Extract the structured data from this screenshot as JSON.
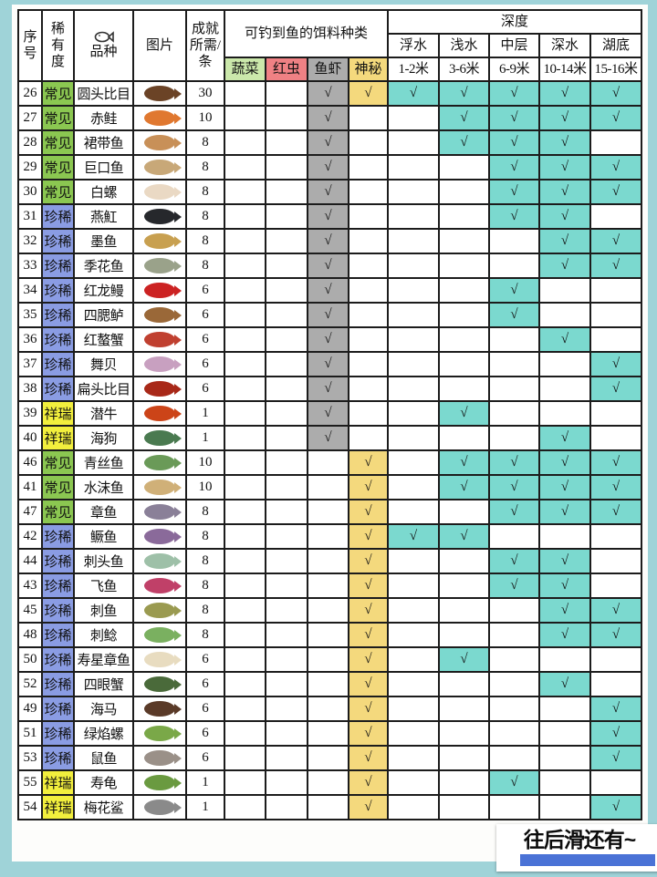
{
  "page": {
    "scroll_hint": "往后滑还有~"
  },
  "colors": {
    "background": "#9fd3d8",
    "border": "#1c1c1c",
    "depth_check_cell": "#7bd9cf",
    "scroll_bar_blue": "#4a72d6"
  },
  "rarity_colors": {
    "常见": "#8bc751",
    "珍稀": "#8a9ce3",
    "祥瑞": "#f2ef3d"
  },
  "table": {
    "check_mark": "√",
    "headers": {
      "no": "序号",
      "rarity": "稀有度",
      "species": "品种",
      "species_icon": "fish-icon",
      "image": "图片",
      "achievement": "成就所需/条",
      "bait_group": "可钓到鱼的饵料种类",
      "baits": [
        {
          "label": "蔬菜",
          "color": "#cbe8ab"
        },
        {
          "label": "红虫",
          "color": "#ef8184"
        },
        {
          "label": "鱼虾",
          "color": "#acacac"
        },
        {
          "label": "神秘",
          "color": "#f4d97d"
        }
      ],
      "depth_group": "深度",
      "depths": [
        {
          "name": "浮水",
          "range": "1-2米"
        },
        {
          "name": "浅水",
          "range": "3-6米"
        },
        {
          "name": "中层",
          "range": "6-9米"
        },
        {
          "name": "深水",
          "range": "10-14米"
        },
        {
          "name": "湖底",
          "range": "15-16米"
        }
      ]
    },
    "rows": [
      {
        "no": "26",
        "rarity": "常见",
        "name": "圆头比目",
        "count": "30",
        "baits": [
          0,
          0,
          1,
          1
        ],
        "depths": [
          1,
          1,
          1,
          1,
          1
        ],
        "img_color": "#6b4326"
      },
      {
        "no": "27",
        "rarity": "常见",
        "name": "赤鲑",
        "count": "10",
        "baits": [
          0,
          0,
          1,
          0
        ],
        "depths": [
          0,
          1,
          1,
          1,
          1
        ],
        "img_color": "#e07830"
      },
      {
        "no": "28",
        "rarity": "常见",
        "name": "裙带鱼",
        "count": "8",
        "baits": [
          0,
          0,
          1,
          0
        ],
        "depths": [
          0,
          1,
          1,
          1,
          0
        ],
        "img_color": "#c89058"
      },
      {
        "no": "29",
        "rarity": "常见",
        "name": "巨口鱼",
        "count": "8",
        "baits": [
          0,
          0,
          1,
          0
        ],
        "depths": [
          0,
          0,
          1,
          1,
          1
        ],
        "img_color": "#c8a878"
      },
      {
        "no": "30",
        "rarity": "常见",
        "name": "白螺",
        "count": "8",
        "baits": [
          0,
          0,
          1,
          0
        ],
        "depths": [
          0,
          0,
          1,
          1,
          1
        ],
        "img_color": "#ead9c4"
      },
      {
        "no": "31",
        "rarity": "珍稀",
        "name": "燕魟",
        "count": "8",
        "baits": [
          0,
          0,
          1,
          0
        ],
        "depths": [
          0,
          0,
          1,
          1,
          0
        ],
        "img_color": "#26282c"
      },
      {
        "no": "32",
        "rarity": "珍稀",
        "name": "墨鱼",
        "count": "8",
        "baits": [
          0,
          0,
          1,
          0
        ],
        "depths": [
          0,
          0,
          0,
          1,
          1
        ],
        "img_color": "#c8a050"
      },
      {
        "no": "33",
        "rarity": "珍稀",
        "name": "季花鱼",
        "count": "8",
        "baits": [
          0,
          0,
          1,
          0
        ],
        "depths": [
          0,
          0,
          0,
          1,
          1
        ],
        "img_color": "#9aa28a"
      },
      {
        "no": "34",
        "rarity": "珍稀",
        "name": "红龙鳗",
        "count": "6",
        "baits": [
          0,
          0,
          1,
          0
        ],
        "depths": [
          0,
          0,
          1,
          0,
          0
        ],
        "img_color": "#cc2222"
      },
      {
        "no": "35",
        "rarity": "珍稀",
        "name": "四腮鲈",
        "count": "6",
        "baits": [
          0,
          0,
          1,
          0
        ],
        "depths": [
          0,
          0,
          1,
          0,
          0
        ],
        "img_color": "#9a6838"
      },
      {
        "no": "36",
        "rarity": "珍稀",
        "name": "红螯蟹",
        "count": "6",
        "baits": [
          0,
          0,
          1,
          0
        ],
        "depths": [
          0,
          0,
          0,
          1,
          0
        ],
        "img_color": "#c04030"
      },
      {
        "no": "37",
        "rarity": "珍稀",
        "name": "舞贝",
        "count": "6",
        "baits": [
          0,
          0,
          1,
          0
        ],
        "depths": [
          0,
          0,
          0,
          0,
          1
        ],
        "img_color": "#c8a0c0"
      },
      {
        "no": "38",
        "rarity": "珍稀",
        "name": "扁头比目",
        "count": "6",
        "baits": [
          0,
          0,
          1,
          0
        ],
        "depths": [
          0,
          0,
          0,
          0,
          1
        ],
        "img_color": "#a82818"
      },
      {
        "no": "39",
        "rarity": "祥瑞",
        "name": "潜牛",
        "count": "1",
        "baits": [
          0,
          0,
          1,
          0
        ],
        "depths": [
          0,
          1,
          0,
          0,
          0
        ],
        "img_color": "#cc4418"
      },
      {
        "no": "40",
        "rarity": "祥瑞",
        "name": "海狗",
        "count": "1",
        "baits": [
          0,
          0,
          1,
          0
        ],
        "depths": [
          0,
          0,
          0,
          1,
          0
        ],
        "img_color": "#4a7a50"
      },
      {
        "no": "46",
        "rarity": "常见",
        "name": "青丝鱼",
        "count": "10",
        "baits": [
          0,
          0,
          0,
          1
        ],
        "depths": [
          0,
          1,
          1,
          1,
          1
        ],
        "img_color": "#6a9a58"
      },
      {
        "no": "41",
        "rarity": "常见",
        "name": "水沫鱼",
        "count": "10",
        "baits": [
          0,
          0,
          0,
          1
        ],
        "depths": [
          0,
          1,
          1,
          1,
          1
        ],
        "img_color": "#d0b078"
      },
      {
        "no": "47",
        "rarity": "常见",
        "name": "章鱼",
        "count": "8",
        "baits": [
          0,
          0,
          0,
          1
        ],
        "depths": [
          0,
          0,
          1,
          1,
          1
        ],
        "img_color": "#8a8098"
      },
      {
        "no": "42",
        "rarity": "珍稀",
        "name": "鳜鱼",
        "count": "8",
        "baits": [
          0,
          0,
          0,
          1
        ],
        "depths": [
          1,
          1,
          0,
          0,
          0
        ],
        "img_color": "#8a6a9a"
      },
      {
        "no": "44",
        "rarity": "珍稀",
        "name": "刺头鱼",
        "count": "8",
        "baits": [
          0,
          0,
          0,
          1
        ],
        "depths": [
          0,
          0,
          1,
          1,
          0
        ],
        "img_color": "#9ec0a8"
      },
      {
        "no": "43",
        "rarity": "珍稀",
        "name": "飞鱼",
        "count": "8",
        "baits": [
          0,
          0,
          0,
          1
        ],
        "depths": [
          0,
          0,
          1,
          1,
          0
        ],
        "img_color": "#c04068"
      },
      {
        "no": "45",
        "rarity": "珍稀",
        "name": "刺鱼",
        "count": "8",
        "baits": [
          0,
          0,
          0,
          1
        ],
        "depths": [
          0,
          0,
          0,
          1,
          1
        ],
        "img_color": "#9a9a50"
      },
      {
        "no": "48",
        "rarity": "珍稀",
        "name": "刺鲶",
        "count": "8",
        "baits": [
          0,
          0,
          0,
          1
        ],
        "depths": [
          0,
          0,
          0,
          1,
          1
        ],
        "img_color": "#7ab060"
      },
      {
        "no": "50",
        "rarity": "珍稀",
        "name": "寿星章鱼",
        "count": "6",
        "baits": [
          0,
          0,
          0,
          1
        ],
        "depths": [
          0,
          1,
          0,
          0,
          0
        ],
        "img_color": "#e8dcc0"
      },
      {
        "no": "52",
        "rarity": "珍稀",
        "name": "四眼蟹",
        "count": "6",
        "baits": [
          0,
          0,
          0,
          1
        ],
        "depths": [
          0,
          0,
          0,
          1,
          0
        ],
        "img_color": "#4a6a3a"
      },
      {
        "no": "49",
        "rarity": "珍稀",
        "name": "海马",
        "count": "6",
        "baits": [
          0,
          0,
          0,
          1
        ],
        "depths": [
          0,
          0,
          0,
          0,
          1
        ],
        "img_color": "#5a3a28"
      },
      {
        "no": "51",
        "rarity": "珍稀",
        "name": "绿焰螺",
        "count": "6",
        "baits": [
          0,
          0,
          0,
          1
        ],
        "depths": [
          0,
          0,
          0,
          0,
          1
        ],
        "img_color": "#7aa848"
      },
      {
        "no": "53",
        "rarity": "珍稀",
        "name": "鼠鱼",
        "count": "6",
        "baits": [
          0,
          0,
          0,
          1
        ],
        "depths": [
          0,
          0,
          0,
          0,
          1
        ],
        "img_color": "#9a9088"
      },
      {
        "no": "55",
        "rarity": "祥瑞",
        "name": "寿龟",
        "count": "1",
        "baits": [
          0,
          0,
          0,
          1
        ],
        "depths": [
          0,
          0,
          1,
          0,
          0
        ],
        "img_color": "#6a9a40"
      },
      {
        "no": "54",
        "rarity": "祥瑞",
        "name": "梅花鲨",
        "count": "1",
        "baits": [
          0,
          0,
          0,
          1
        ],
        "depths": [
          0,
          0,
          0,
          0,
          1
        ],
        "img_color": "#8a8a8a"
      }
    ]
  }
}
